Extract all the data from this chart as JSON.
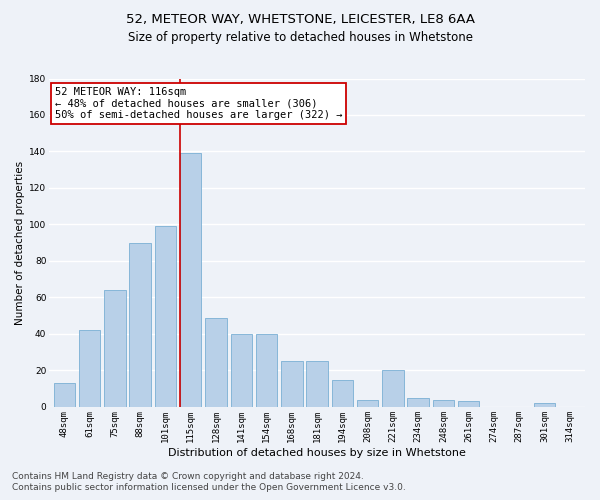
{
  "title1": "52, METEOR WAY, WHETSTONE, LEICESTER, LE8 6AA",
  "title2": "Size of property relative to detached houses in Whetstone",
  "xlabel": "Distribution of detached houses by size in Whetstone",
  "ylabel": "Number of detached properties",
  "categories": [
    "48sqm",
    "61sqm",
    "75sqm",
    "88sqm",
    "101sqm",
    "115sqm",
    "128sqm",
    "141sqm",
    "154sqm",
    "168sqm",
    "181sqm",
    "194sqm",
    "208sqm",
    "221sqm",
    "234sqm",
    "248sqm",
    "261sqm",
    "274sqm",
    "287sqm",
    "301sqm",
    "314sqm"
  ],
  "values": [
    13,
    42,
    64,
    90,
    99,
    139,
    49,
    40,
    40,
    25,
    25,
    15,
    4,
    20,
    5,
    4,
    3,
    0,
    0,
    2,
    0
  ],
  "bar_color": "#b8d0e8",
  "bar_edge_color": "#7aafd4",
  "highlight_bar_index": 5,
  "vline_color": "#cc0000",
  "annotation_line1": "52 METEOR WAY: 116sqm",
  "annotation_line2": "← 48% of detached houses are smaller (306)",
  "annotation_line3": "50% of semi-detached houses are larger (322) →",
  "annotation_box_color": "#ffffff",
  "annotation_box_edge": "#cc0000",
  "ylim": [
    0,
    180
  ],
  "yticks": [
    0,
    20,
    40,
    60,
    80,
    100,
    120,
    140,
    160,
    180
  ],
  "footer1": "Contains HM Land Registry data © Crown copyright and database right 2024.",
  "footer2": "Contains public sector information licensed under the Open Government Licence v3.0.",
  "background_color": "#eef2f8",
  "plot_bg_color": "#eef2f8",
  "grid_color": "#ffffff",
  "title1_fontsize": 9.5,
  "title2_fontsize": 8.5,
  "xlabel_fontsize": 8,
  "ylabel_fontsize": 7.5,
  "tick_fontsize": 6.5,
  "annotation_fontsize": 7.5,
  "footer_fontsize": 6.5
}
